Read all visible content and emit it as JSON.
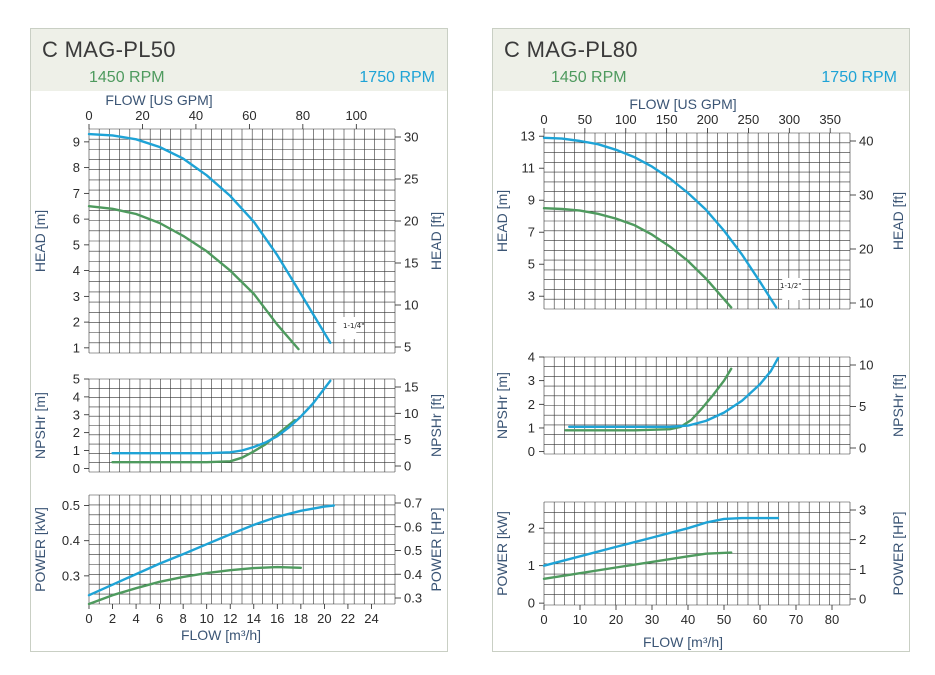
{
  "colors": {
    "low": "#4e9a5e",
    "high": "#1ea3d6",
    "grid": "#333333",
    "axis_title": "#3b5575"
  },
  "panels": [
    {
      "title": "C MAG-PL50",
      "rpm_low": "1450 RPM",
      "rpm_high": "1750 RPM",
      "flow_top_label": "FLOW [US  GPM]",
      "flow_bottom_label": "FLOW [m³/h]",
      "impeller_label": "1-1/4\"",
      "chart_data": [
        {
          "type": "line",
          "name": "head",
          "xlabel": "FLOW [m³/h]",
          "ylabel": "HEAD [m]",
          "ylabel_right": "HEAD [ft]",
          "xlim": [
            0,
            26
          ],
          "ylim": [
            0.8,
            9.5
          ],
          "x_ticks": [
            0,
            2,
            4,
            6,
            8,
            10,
            12,
            14,
            16,
            18,
            20,
            22,
            24
          ],
          "y_ticks": [
            1,
            2,
            3,
            4,
            5,
            6,
            7,
            8,
            9
          ],
          "x2_ticks": [
            0,
            20,
            40,
            60,
            80,
            100
          ],
          "y2_ticks": [
            5,
            10,
            15,
            20,
            25,
            30
          ],
          "series": [
            {
              "name": "1450 RPM",
              "x": [
                0,
                2,
                4,
                6,
                8,
                10,
                12,
                14,
                16,
                17.8
              ],
              "y": [
                6.5,
                6.4,
                6.2,
                5.85,
                5.35,
                4.75,
                4.0,
                3.1,
                1.9,
                0.95
              ]
            },
            {
              "name": "1750 RPM",
              "x": [
                0,
                2,
                4,
                6,
                8,
                10,
                12,
                14,
                16,
                18,
                20.5
              ],
              "y": [
                9.3,
                9.25,
                9.1,
                8.8,
                8.35,
                7.7,
                6.9,
                5.9,
                4.6,
                3.1,
                1.2
              ]
            }
          ]
        },
        {
          "type": "line",
          "name": "npshr",
          "xlabel": "FLOW [m³/h]",
          "ylabel": "NPSHr [m]",
          "ylabel_right": "NPSHr [ft]",
          "xlim": [
            0,
            26
          ],
          "ylim": [
            -0.2,
            5
          ],
          "y_ticks": [
            0,
            1,
            2,
            3,
            4,
            5
          ],
          "y2_ticks": [
            0,
            5,
            10,
            15
          ],
          "series": [
            {
              "name": "1450 RPM",
              "x": [
                2,
                6,
                10,
                12,
                13,
                14,
                15,
                16,
                17.5
              ],
              "y": [
                0.35,
                0.35,
                0.35,
                0.4,
                0.6,
                0.95,
                1.35,
                1.9,
                2.7
              ]
            },
            {
              "name": "1750 RPM",
              "x": [
                2,
                6,
                10,
                12,
                13,
                14,
                15,
                16,
                17,
                18,
                19,
                20.5
              ],
              "y": [
                0.85,
                0.85,
                0.85,
                0.9,
                1.0,
                1.2,
                1.45,
                1.8,
                2.3,
                2.9,
                3.6,
                4.9
              ]
            }
          ]
        },
        {
          "type": "line",
          "name": "power",
          "xlabel": "FLOW [m³/h]",
          "ylabel": "POWER [kW]",
          "ylabel_right": "POWER [HP]",
          "xlim": [
            0,
            26
          ],
          "ylim": [
            0.22,
            0.53
          ],
          "x_ticks": [
            0,
            2,
            4,
            6,
            8,
            10,
            12,
            14,
            16,
            18,
            20,
            22,
            24
          ],
          "y_ticks": [
            0.3,
            0.4,
            0.5
          ],
          "y2_ticks": [
            0.3,
            0.4,
            0.5,
            0.6,
            0.7
          ],
          "series": [
            {
              "name": "1450 RPM",
              "x": [
                0,
                2,
                4,
                6,
                8,
                10,
                12,
                14,
                16,
                18
              ],
              "y": [
                0.22,
                0.245,
                0.265,
                0.283,
                0.297,
                0.308,
                0.316,
                0.322,
                0.325,
                0.323
              ]
            },
            {
              "name": "1750 RPM",
              "x": [
                0,
                2,
                4,
                6,
                8,
                10,
                12,
                14,
                16,
                18,
                20,
                20.8
              ],
              "y": [
                0.245,
                0.275,
                0.305,
                0.335,
                0.362,
                0.39,
                0.418,
                0.445,
                0.468,
                0.485,
                0.497,
                0.5
              ]
            }
          ]
        }
      ]
    },
    {
      "title": "C MAG-PL80",
      "rpm_low": "1450 RPM",
      "rpm_high": "1750 RPM",
      "flow_top_label": "FLOW [US  GPM]",
      "flow_bottom_label": "FLOW [m³/h]",
      "impeller_label": "1-1/2\"",
      "chart_data": [
        {
          "type": "line",
          "name": "head",
          "xlabel": "FLOW [m³/h]",
          "ylabel": "HEAD [m]",
          "ylabel_right": "HEAD [ft]",
          "xlim": [
            0,
            85
          ],
          "ylim": [
            2.2,
            13.2
          ],
          "x_ticks": [
            0,
            10,
            20,
            30,
            40,
            50,
            60,
            70,
            80
          ],
          "y_ticks": [
            3,
            5,
            7,
            9,
            11,
            13
          ],
          "x2_ticks": [
            0,
            50,
            100,
            150,
            200,
            250,
            300,
            350
          ],
          "y2_ticks": [
            10,
            20,
            30,
            40
          ],
          "series": [
            {
              "name": "1450 RPM",
              "x": [
                0,
                5,
                10,
                15,
                20,
                25,
                30,
                35,
                40,
                45,
                52
              ],
              "y": [
                8.5,
                8.45,
                8.35,
                8.15,
                7.85,
                7.45,
                6.85,
                6.1,
                5.2,
                4.1,
                2.3
              ]
            },
            {
              "name": "1750 RPM",
              "x": [
                0,
                5,
                10,
                15,
                20,
                25,
                30,
                35,
                40,
                45,
                50,
                55,
                60,
                64.5
              ],
              "y": [
                12.9,
                12.85,
                12.7,
                12.5,
                12.15,
                11.7,
                11.1,
                10.35,
                9.45,
                8.4,
                7.1,
                5.6,
                3.9,
                2.3
              ]
            }
          ]
        },
        {
          "type": "line",
          "name": "npshr",
          "xlabel": "FLOW [m³/h]",
          "ylabel": "NPSHr [m]",
          "ylabel_right": "NPSHr [ft]",
          "xlim": [
            0,
            85
          ],
          "ylim": [
            -0.1,
            4
          ],
          "y_ticks": [
            0,
            1,
            2,
            3,
            4
          ],
          "y2_ticks": [
            0,
            5,
            10
          ],
          "series": [
            {
              "name": "1450 RPM",
              "x": [
                6,
                15,
                25,
                35,
                38,
                41,
                44,
                47,
                50,
                52
              ],
              "y": [
                0.9,
                0.9,
                0.9,
                0.95,
                1.05,
                1.35,
                1.85,
                2.4,
                3.0,
                3.5
              ]
            },
            {
              "name": "1750 RPM",
              "x": [
                7,
                15,
                25,
                35,
                40,
                45,
                50,
                55,
                60,
                63,
                65
              ],
              "y": [
                1.05,
                1.05,
                1.05,
                1.05,
                1.1,
                1.3,
                1.65,
                2.15,
                2.85,
                3.4,
                3.95
              ]
            }
          ]
        },
        {
          "type": "line",
          "name": "power",
          "xlabel": "FLOW [m³/h]",
          "ylabel": "POWER [kW]",
          "ylabel_right": "POWER [HP]",
          "xlim": [
            0,
            85
          ],
          "ylim": [
            -0.05,
            2.7
          ],
          "x_ticks": [
            0,
            10,
            20,
            30,
            40,
            50,
            60,
            70,
            80
          ],
          "y_ticks": [
            0,
            1,
            2
          ],
          "y2_ticks": [
            0,
            1,
            2,
            3
          ],
          "series": [
            {
              "name": "1450 RPM",
              "x": [
                0,
                10,
                20,
                30,
                40,
                45,
                52
              ],
              "y": [
                0.65,
                0.8,
                0.95,
                1.1,
                1.25,
                1.32,
                1.35
              ]
            },
            {
              "name": "1750 RPM",
              "x": [
                0,
                10,
                20,
                30,
                40,
                45,
                50,
                55,
                60,
                65
              ],
              "y": [
                1.0,
                1.25,
                1.5,
                1.75,
                2.0,
                2.15,
                2.25,
                2.27,
                2.27,
                2.27
              ]
            }
          ]
        }
      ]
    }
  ]
}
